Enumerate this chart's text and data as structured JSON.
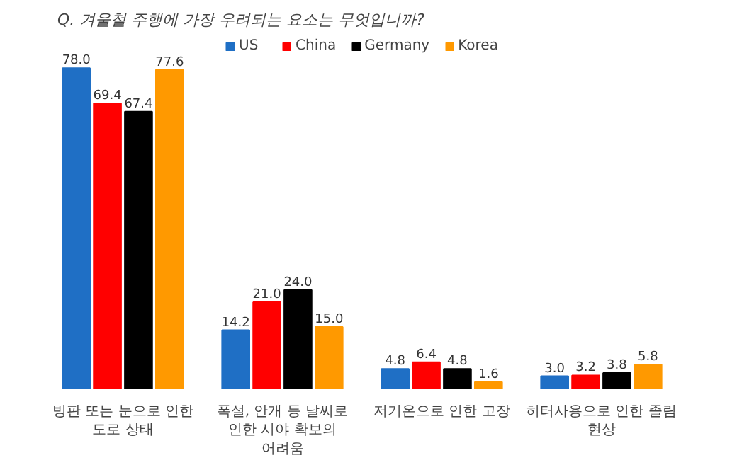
{
  "chart_data": {
    "type": "bar",
    "title": "Q. 겨울철 주행에 가장 우려되는 요소는 무엇입니까?",
    "categories": [
      "빙판 또는 눈으로 인한 도로 상태",
      "폭설, 안개 등 날씨로 인한 시야 확보의 어려움",
      "저기온으로 인한 고장",
      "히터사용으로 인한 졸림 현상"
    ],
    "series": [
      {
        "name": "US",
        "color": "#1f6fc5",
        "values": [
          78.0,
          14.2,
          4.8,
          3.0
        ],
        "value_labels": [
          "78.0",
          "14.2",
          "4.8",
          "3.0"
        ]
      },
      {
        "name": "China",
        "color": "#ff0000",
        "values": [
          69.4,
          21.0,
          6.4,
          3.2
        ],
        "value_labels": [
          "69.4",
          "21.0",
          "6.4",
          "3.2"
        ]
      },
      {
        "name": "Germany",
        "color": "#000000",
        "values": [
          67.4,
          24.0,
          4.8,
          3.8
        ],
        "value_labels": [
          "67.4",
          "24.0",
          "4.8",
          "3.8"
        ]
      },
      {
        "name": "Korea",
        "color": "#ff9900",
        "values": [
          77.6,
          15.0,
          1.6,
          5.8
        ],
        "value_labels": [
          "77.6",
          "15.0",
          "1.6",
          "5.8"
        ]
      }
    ],
    "legend": "top"
  }
}
